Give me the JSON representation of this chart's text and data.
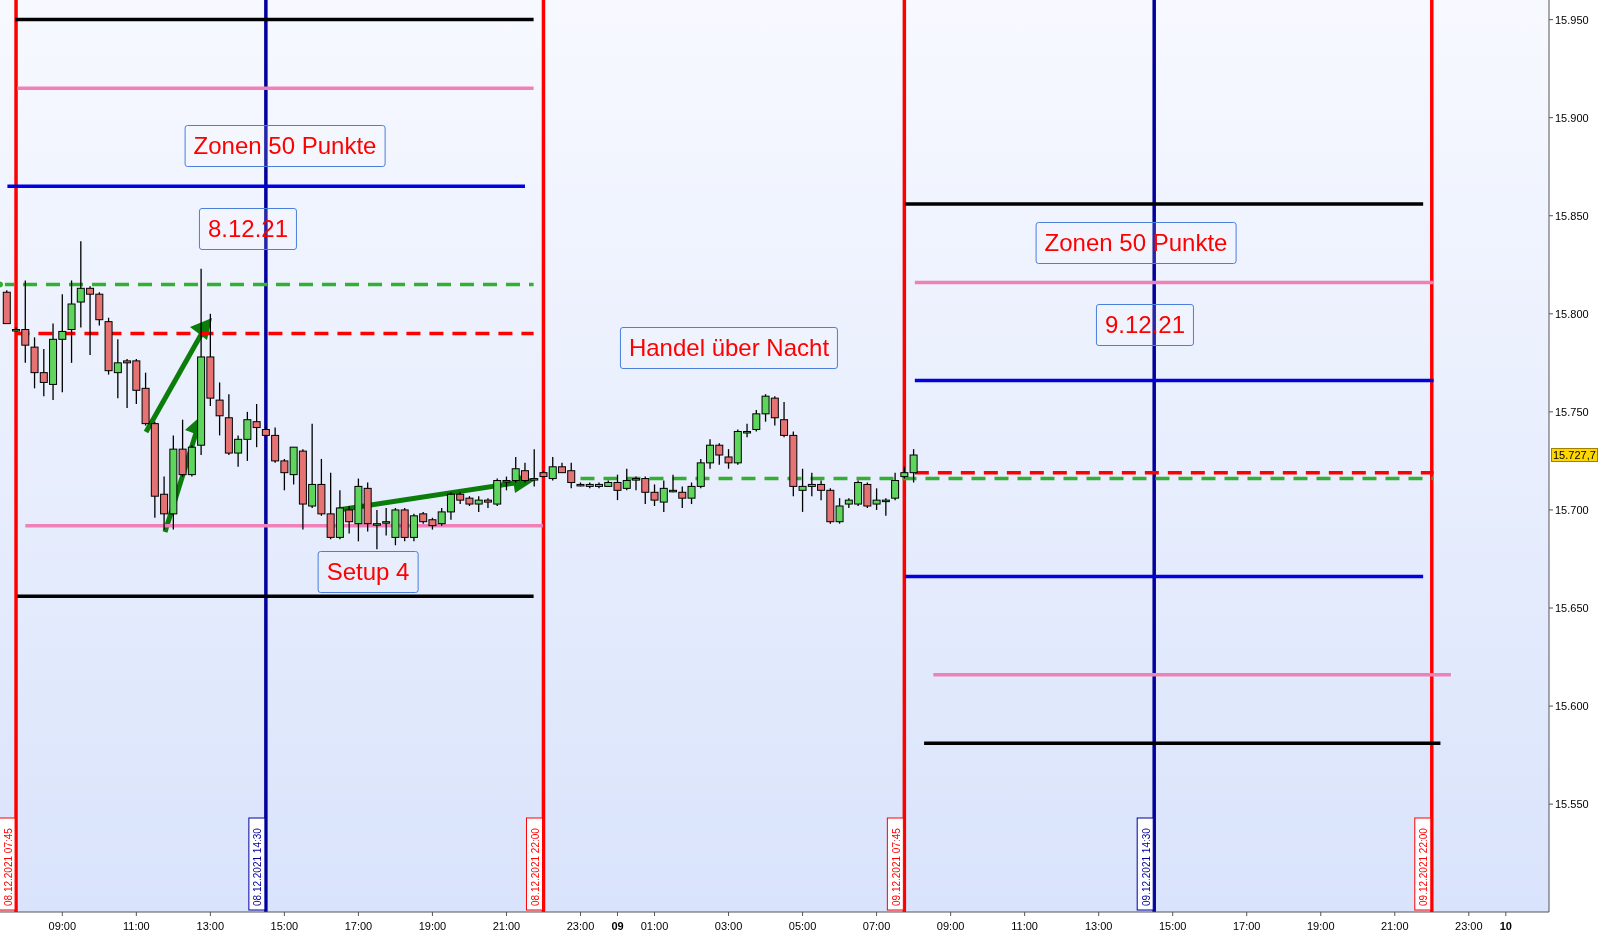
{
  "chart_data": {
    "type": "candlestick",
    "x": [
      "2021-12-08T07:30",
      "2021-12-08T07:45",
      "2021-12-08T08:00",
      "2021-12-08T08:15",
      "2021-12-08T08:30",
      "2021-12-08T08:45",
      "2021-12-08T09:00",
      "2021-12-08T09:15",
      "2021-12-08T09:30",
      "2021-12-08T09:45",
      "2021-12-08T10:00",
      "2021-12-08T10:15",
      "2021-12-08T10:30",
      "2021-12-08T10:45",
      "2021-12-08T11:00",
      "2021-12-08T11:15",
      "2021-12-08T11:30",
      "2021-12-08T11:45",
      "2021-12-08T12:00",
      "2021-12-08T12:15",
      "2021-12-08T12:30",
      "2021-12-08T12:45",
      "2021-12-08T13:00",
      "2021-12-08T13:15",
      "2021-12-08T13:30",
      "2021-12-08T13:45",
      "2021-12-08T14:00",
      "2021-12-08T14:15",
      "2021-12-08T14:30",
      "2021-12-08T14:45",
      "2021-12-08T15:00",
      "2021-12-08T15:15",
      "2021-12-08T15:30",
      "2021-12-08T15:45",
      "2021-12-08T16:00",
      "2021-12-08T16:15",
      "2021-12-08T16:30",
      "2021-12-08T16:45",
      "2021-12-08T17:00",
      "2021-12-08T17:15",
      "2021-12-08T17:30",
      "2021-12-08T17:45",
      "2021-12-08T18:00",
      "2021-12-08T18:15",
      "2021-12-08T18:30",
      "2021-12-08T18:45",
      "2021-12-08T19:00",
      "2021-12-08T19:15",
      "2021-12-08T19:30",
      "2021-12-08T19:45",
      "2021-12-08T20:00",
      "2021-12-08T20:15",
      "2021-12-08T20:30",
      "2021-12-08T20:45",
      "2021-12-08T21:00",
      "2021-12-08T21:15",
      "2021-12-08T21:30",
      "2021-12-08T21:45",
      "2021-12-08T22:00",
      "2021-12-08T22:15",
      "2021-12-08T22:30",
      "2021-12-08T22:45",
      "2021-12-08T23:00",
      "2021-12-08T23:15",
      "2021-12-08T23:30",
      "2021-12-08T23:45",
      "2021-12-09T00:00",
      "2021-12-09T00:15",
      "2021-12-09T00:30",
      "2021-12-09T00:45",
      "2021-12-09T01:00",
      "2021-12-09T01:15",
      "2021-12-09T01:30",
      "2021-12-09T01:45",
      "2021-12-09T02:00",
      "2021-12-09T02:15",
      "2021-12-09T02:30",
      "2021-12-09T02:45",
      "2021-12-09T03:00",
      "2021-12-09T03:15",
      "2021-12-09T03:30",
      "2021-12-09T03:45",
      "2021-12-09T04:00",
      "2021-12-09T04:15",
      "2021-12-09T04:30",
      "2021-12-09T04:45",
      "2021-12-09T05:00",
      "2021-12-09T05:15",
      "2021-12-09T05:30",
      "2021-12-09T05:45",
      "2021-12-09T06:00",
      "2021-12-09T06:15",
      "2021-12-09T06:30",
      "2021-12-09T06:45",
      "2021-12-09T07:00",
      "2021-12-09T07:15",
      "2021-12-09T07:30",
      "2021-12-09T07:45",
      "2021-12-09T08:00"
    ],
    "ohlc": [
      [
        15811,
        15812,
        15795,
        15795
      ],
      [
        15792,
        15793,
        15792,
        15792
      ],
      [
        15792,
        15817,
        15775,
        15784
      ],
      [
        15783,
        15788,
        15762,
        15770
      ],
      [
        15770,
        15782,
        15758,
        15765
      ],
      [
        15764,
        15795,
        15756,
        15787
      ],
      [
        15787,
        15810,
        15760,
        15791
      ],
      [
        15792,
        15817,
        15775,
        15805
      ],
      [
        15806,
        15837,
        15793,
        15813
      ],
      [
        15813,
        15814,
        15779,
        15810
      ],
      [
        15810,
        15811,
        15794,
        15797
      ],
      [
        15796,
        15798,
        15769,
        15771
      ],
      [
        15770,
        15787,
        15757,
        15775
      ],
      [
        15776,
        15777,
        15752,
        15775
      ],
      [
        15776,
        15777,
        15754,
        15761
      ],
      [
        15762,
        15770,
        15743,
        15744
      ],
      [
        15744,
        15745,
        15696,
        15707
      ],
      [
        15708,
        15717,
        15690,
        15698
      ],
      [
        15698,
        15738,
        15690,
        15731
      ],
      [
        15731,
        15746,
        15717,
        15718
      ],
      [
        15718,
        15733,
        15717,
        15732
      ],
      [
        15733,
        15823,
        15728,
        15778
      ],
      [
        15778,
        15800,
        15753,
        15757
      ],
      [
        15756,
        15765,
        15738,
        15748
      ],
      [
        15747,
        15759,
        15728,
        15729
      ],
      [
        15729,
        15738,
        15722,
        15736
      ],
      [
        15736,
        15750,
        15725,
        15746
      ],
      [
        15745,
        15754,
        15732,
        15742
      ],
      [
        15741,
        15743,
        15738,
        15738
      ],
      [
        15738,
        15742,
        15724,
        15725
      ],
      [
        15725,
        15726,
        15710,
        15719
      ],
      [
        15718,
        15732,
        15713,
        15732
      ],
      [
        15730,
        15731,
        15690,
        15703
      ],
      [
        15702,
        15744,
        15701,
        15713
      ],
      [
        15713,
        15726,
        15697,
        15698
      ],
      [
        15698,
        15719,
        15685,
        15686
      ],
      [
        15686,
        15710,
        15685,
        15701
      ],
      [
        15700,
        15702,
        15688,
        15694
      ],
      [
        15693,
        15716,
        15684,
        15712
      ],
      [
        15711,
        15714,
        15689,
        15693
      ],
      [
        15693,
        15700,
        15680,
        15693
      ],
      [
        15694,
        15701,
        15687,
        15694
      ],
      [
        15686,
        15701,
        15682,
        15700
      ],
      [
        15700,
        15701,
        15684,
        15686
      ],
      [
        15686,
        15698,
        15684,
        15697
      ],
      [
        15698,
        15699,
        15693,
        15694
      ],
      [
        15695,
        15696,
        15690,
        15692
      ],
      [
        15693,
        15701,
        15692,
        15699
      ],
      [
        15699,
        15709,
        15695,
        15708
      ],
      [
        15708,
        15709,
        15703,
        15705
      ],
      [
        15706,
        15707,
        15702,
        15703
      ],
      [
        15703,
        15707,
        15699,
        15705
      ],
      [
        15705,
        15706,
        15701,
        15704
      ],
      [
        15703,
        15716,
        15702,
        15715
      ],
      [
        15715,
        15717,
        15710,
        15715
      ],
      [
        15715,
        15727,
        15714,
        15721
      ],
      [
        15720,
        15724,
        15714,
        15715
      ],
      [
        15716,
        15731,
        15712,
        15716
      ],
      [
        15719,
        15720,
        15717,
        15717
      ],
      [
        15716,
        15727,
        15715,
        15722
      ],
      [
        15722,
        15724,
        15719,
        15719
      ],
      [
        15720,
        15724,
        15711,
        15714
      ],
      [
        15713,
        15714,
        15712,
        15713
      ],
      [
        15712,
        15714,
        15711,
        15713
      ],
      [
        15712,
        15714,
        15711,
        15713
      ],
      [
        15712,
        15715,
        15712,
        15714
      ],
      [
        15714,
        15718,
        15705,
        15710
      ],
      [
        15711,
        15721,
        15710,
        15715
      ],
      [
        15716,
        15717,
        15710,
        15716
      ],
      [
        15716,
        15717,
        15703,
        15709
      ],
      [
        15709,
        15713,
        15702,
        15705
      ],
      [
        15704,
        15715,
        15699,
        15711
      ],
      [
        15710,
        15718,
        15709,
        15710
      ],
      [
        15709,
        15712,
        15701,
        15706
      ],
      [
        15706,
        15714,
        15703,
        15712
      ],
      [
        15712,
        15726,
        15711,
        15724
      ],
      [
        15724,
        15736,
        15721,
        15733
      ],
      [
        15733,
        15734,
        15723,
        15728
      ],
      [
        15727,
        15731,
        15721,
        15724
      ],
      [
        15724,
        15741,
        15723,
        15740
      ],
      [
        15740,
        15744,
        15737,
        15740
      ],
      [
        15741,
        15751,
        15740,
        15749
      ],
      [
        15749,
        15759,
        15745,
        15758
      ],
      [
        15757,
        15758,
        15743,
        15747
      ],
      [
        15746,
        15755,
        15737,
        15738
      ],
      [
        15738,
        15740,
        15707,
        15712
      ],
      [
        15710,
        15721,
        15699,
        15712
      ],
      [
        15712,
        15719,
        15707,
        15713
      ],
      [
        15713,
        15715,
        15705,
        15710
      ],
      [
        15710,
        15711,
        15693,
        15694
      ],
      [
        15694,
        15706,
        15693,
        15702
      ],
      [
        15703,
        15706,
        15701,
        15705
      ],
      [
        15703,
        15715,
        15702,
        15714
      ],
      [
        15713,
        15714,
        15701,
        15702
      ],
      [
        15703,
        15711,
        15700,
        15705
      ],
      [
        15705,
        15706,
        15697,
        15705
      ],
      [
        15706,
        15719,
        15705,
        15715
      ],
      [
        15717,
        15722,
        15716,
        15719
      ],
      [
        15719,
        15731,
        15714,
        15728
      ]
    ],
    "series": [
      {
        "type": "line",
        "color": "#000000",
        "x": [
          "2021-12-08T07:44",
          "2021-12-08T21:44"
        ],
        "values": [
          15950,
          15950
        ]
      },
      {
        "type": "line",
        "color": "#f080b8",
        "x": [
          "2021-12-08T07:47",
          "2021-12-08T21:44"
        ],
        "values": [
          15915,
          15915
        ]
      },
      {
        "type": "line",
        "color": "#0000e0",
        "x": [
          "2021-12-08T07:31",
          "2021-12-08T21:30"
        ],
        "values": [
          15865,
          15865
        ]
      },
      {
        "type": "line",
        "color": "#33b033",
        "line_style": "dashed",
        "x": [
          "2021-12-08T07:19",
          "2021-12-08T21:44"
        ],
        "values": [
          15815,
          15815
        ]
      },
      {
        "type": "line",
        "color": "#ff0000",
        "line_style": "dashed",
        "x": [
          "2021-12-08T07:44",
          "2021-12-08T21:44"
        ],
        "values": [
          15790,
          15790
        ]
      },
      {
        "type": "line",
        "color": "#f080b8",
        "x": [
          "2021-12-08T08:00",
          "2021-12-08T21:59"
        ],
        "values": [
          15692,
          15692
        ]
      },
      {
        "type": "line",
        "color": "#000000",
        "x": [
          "2021-12-08T07:47",
          "2021-12-08T21:44"
        ],
        "values": [
          15656,
          15656
        ]
      },
      {
        "type": "line",
        "color": "#000000",
        "x": [
          "2021-12-09T07:46",
          "2021-12-09T21:46"
        ],
        "values": [
          15856,
          15856
        ]
      },
      {
        "type": "line",
        "color": "#f080b8",
        "x": [
          "2021-12-09T08:02",
          "2021-12-09T22:03"
        ],
        "values": [
          15816,
          15816
        ]
      },
      {
        "type": "line",
        "color": "#0000e0",
        "x": [
          "2021-12-09T08:02",
          "2021-12-09T22:03"
        ],
        "values": [
          15766,
          15766
        ]
      },
      {
        "type": "line",
        "color": "#33b033",
        "line_style": "dashed",
        "x": [
          "2021-12-08T23:00",
          "2021-12-09T22:03"
        ],
        "values": [
          15716,
          15716
        ]
      },
      {
        "type": "line",
        "color": "#ff0000",
        "line_style": "dashed",
        "x": [
          "2021-12-09T08:02",
          "2021-12-09T22:03"
        ],
        "values": [
          15719,
          15719
        ]
      },
      {
        "type": "line",
        "color": "#0000e0",
        "x": [
          "2021-12-09T07:46",
          "2021-12-09T21:46"
        ],
        "values": [
          15666,
          15666
        ]
      },
      {
        "type": "line",
        "color": "#f080b8",
        "x": [
          "2021-12-09T08:32",
          "2021-12-09T22:31"
        ],
        "values": [
          15616,
          15616
        ]
      },
      {
        "type": "line",
        "color": "#000000",
        "x": [
          "2021-12-09T08:17",
          "2021-12-09T22:14"
        ],
        "values": [
          15581,
          15581
        ]
      }
    ],
    "ref_lines": [
      {
        "axis": "x",
        "value": "2021-12-08T07:45",
        "label": "08.12.2021 07:45",
        "color": "#ff0000"
      },
      {
        "axis": "x",
        "value": "2021-12-08T14:30",
        "label": "08.12.2021 14:30",
        "color": "#00009c"
      },
      {
        "axis": "x",
        "value": "2021-12-08T22:00",
        "label": "08.12.2021 22:00",
        "color": "#ff0000"
      },
      {
        "axis": "x",
        "value": "2021-12-09T07:45",
        "label": "09.12.2021 07:45",
        "color": "#ff0000"
      },
      {
        "axis": "x",
        "value": "2021-12-09T14:30",
        "label": "09.12.2021 14:30",
        "color": "#00009c"
      },
      {
        "axis": "x",
        "value": "2021-12-09T22:00",
        "label": "09.12.2021 22:00",
        "color": "#ff0000"
      }
    ],
    "annotations": [
      "Zonen 50 Punkte",
      "8.12.21",
      "Setup 4",
      "Handel über Nacht",
      "Zonen 50 Punkte",
      "9.12.21",
      "15.727,7"
    ],
    "xlim": [
      "2021-12-08T07:19",
      "2021-12-10T01:10"
    ],
    "xticks": [
      {
        "value": "2021-12-08T09:00",
        "label": "09:00"
      },
      {
        "value": "2021-12-08T11:00",
        "label": "11:00"
      },
      {
        "value": "2021-12-08T13:00",
        "label": "13:00"
      },
      {
        "value": "2021-12-08T15:00",
        "label": "15:00"
      },
      {
        "value": "2021-12-08T17:00",
        "label": "17:00"
      },
      {
        "value": "2021-12-08T19:00",
        "label": "19:00"
      },
      {
        "value": "2021-12-08T21:00",
        "label": "21:00"
      },
      {
        "value": "2021-12-08T23:00",
        "label": "23:00"
      },
      {
        "value": "2021-12-09T00:00",
        "label": "09"
      },
      {
        "value": "2021-12-09T01:00",
        "label": "01:00"
      },
      {
        "value": "2021-12-09T03:00",
        "label": "03:00"
      },
      {
        "value": "2021-12-09T05:00",
        "label": "05:00"
      },
      {
        "value": "2021-12-09T07:00",
        "label": "07:00"
      },
      {
        "value": "2021-12-09T09:00",
        "label": "09:00"
      },
      {
        "value": "2021-12-09T11:00",
        "label": "11:00"
      },
      {
        "value": "2021-12-09T13:00",
        "label": "13:00"
      },
      {
        "value": "2021-12-09T15:00",
        "label": "15:00"
      },
      {
        "value": "2021-12-09T17:00",
        "label": "17:00"
      },
      {
        "value": "2021-12-09T19:00",
        "label": "19:00"
      },
      {
        "value": "2021-12-09T21:00",
        "label": "21:00"
      },
      {
        "value": "2021-12-09T23:00",
        "label": "23:00"
      },
      {
        "value": "2021-12-10T00:00",
        "label": "10"
      }
    ],
    "ylim": [
      15495,
      15960
    ],
    "yticks": [
      {
        "value": 15550,
        "label": "15.550"
      },
      {
        "value": 15600,
        "label": "15.600"
      },
      {
        "value": 15650,
        "label": "15.650"
      },
      {
        "value": 15700,
        "label": "15.700"
      },
      {
        "value": 15750,
        "label": "15.750"
      },
      {
        "value": 15800,
        "label": "15.800"
      },
      {
        "value": 15850,
        "label": "15.850"
      },
      {
        "value": 15900,
        "label": "15.900"
      },
      {
        "value": 15950,
        "label": "15.950"
      }
    ]
  }
}
